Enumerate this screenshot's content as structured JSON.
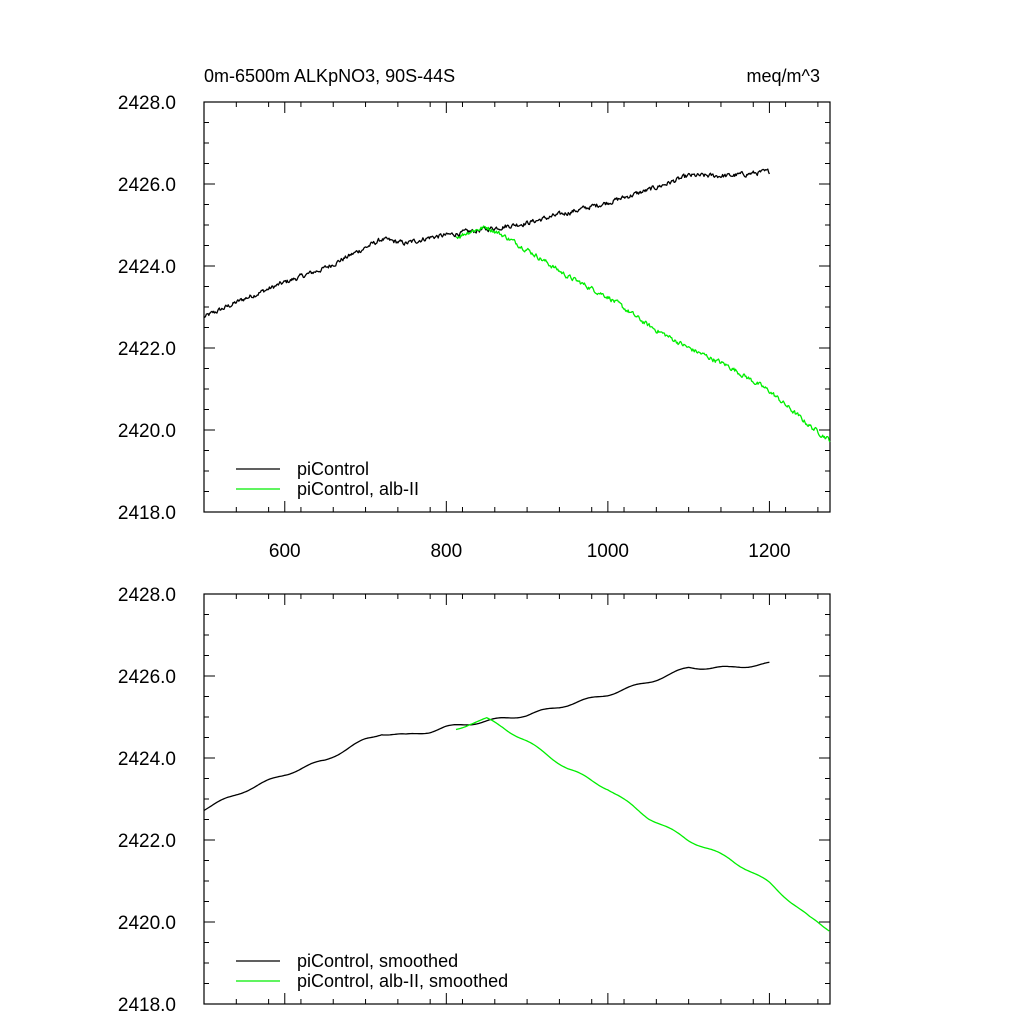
{
  "figure": {
    "title_left": "0m-6500m ALKpNO3, 90S-44S",
    "title_right": "meq/m^3"
  },
  "colors": {
    "piControl": "#000000",
    "alb_II": "#00ee00",
    "axes": "#000000"
  },
  "chart_data": [
    {
      "type": "line",
      "title": "0m-6500m ALKpNO3, 90S-44S",
      "units": "meq/m^3",
      "xlim": [
        500,
        1275
      ],
      "ylim": [
        2418,
        2428
      ],
      "x_ticks": [
        600,
        800,
        1000,
        1200
      ],
      "x_tick_labels": [
        "600",
        "800",
        "1000",
        "1200"
      ],
      "y_ticks": [
        2418,
        2420,
        2422,
        2424,
        2426,
        2428
      ],
      "y_tick_labels": [
        "2418.0",
        "2420.0",
        "2422.0",
        "2424.0",
        "2426.0",
        "2428.0"
      ],
      "legend_position": "bottom-left",
      "series": [
        {
          "name": "piControl",
          "color": "#000000",
          "noisy": true,
          "x": [
            500,
            550,
            600,
            650,
            700,
            720,
            750,
            780,
            800,
            850,
            900,
            950,
            1000,
            1050,
            1100,
            1150,
            1200
          ],
          "y": [
            2422.75,
            2423.2,
            2423.6,
            2423.95,
            2424.45,
            2424.65,
            2424.55,
            2424.7,
            2424.75,
            2424.9,
            2425.05,
            2425.3,
            2425.55,
            2425.85,
            2426.2,
            2426.2,
            2426.3
          ]
        },
        {
          "name": "piControl, alb-II",
          "color": "#00ee00",
          "noisy": true,
          "x": [
            812,
            830,
            850,
            870,
            900,
            950,
            1000,
            1050,
            1100,
            1150,
            1200,
            1250,
            1275
          ],
          "y": [
            2424.7,
            2424.85,
            2424.95,
            2424.75,
            2424.4,
            2423.75,
            2423.25,
            2422.55,
            2422.0,
            2421.55,
            2420.95,
            2420.1,
            2419.75
          ]
        }
      ]
    },
    {
      "type": "line",
      "xlim": [
        500,
        1275
      ],
      "ylim": [
        2418,
        2428
      ],
      "x_ticks": [
        600,
        800,
        1000,
        1200
      ],
      "x_tick_labels": [],
      "y_ticks": [
        2418,
        2420,
        2422,
        2424,
        2426,
        2428
      ],
      "y_tick_labels": [
        "2418.0",
        "2420.0",
        "2422.0",
        "2424.0",
        "2426.0",
        "2428.0"
      ],
      "legend_position": "bottom-left",
      "series": [
        {
          "name": "piControl, smoothed",
          "color": "#000000",
          "noisy": false,
          "x": [
            500,
            550,
            600,
            650,
            700,
            720,
            750,
            780,
            800,
            850,
            900,
            950,
            1000,
            1050,
            1100,
            1150,
            1200
          ],
          "y": [
            2422.75,
            2423.2,
            2423.6,
            2423.95,
            2424.45,
            2424.6,
            2424.55,
            2424.65,
            2424.75,
            2424.9,
            2425.05,
            2425.3,
            2425.55,
            2425.85,
            2426.2,
            2426.2,
            2426.3
          ]
        },
        {
          "name": "piControl, alb-II, smoothed",
          "color": "#00ee00",
          "noisy": false,
          "x": [
            812,
            830,
            850,
            870,
            900,
            950,
            1000,
            1050,
            1100,
            1150,
            1200,
            1250,
            1275
          ],
          "y": [
            2424.7,
            2424.85,
            2424.95,
            2424.75,
            2424.4,
            2423.75,
            2423.25,
            2422.55,
            2422.0,
            2421.55,
            2420.95,
            2420.1,
            2419.8
          ]
        }
      ]
    }
  ]
}
